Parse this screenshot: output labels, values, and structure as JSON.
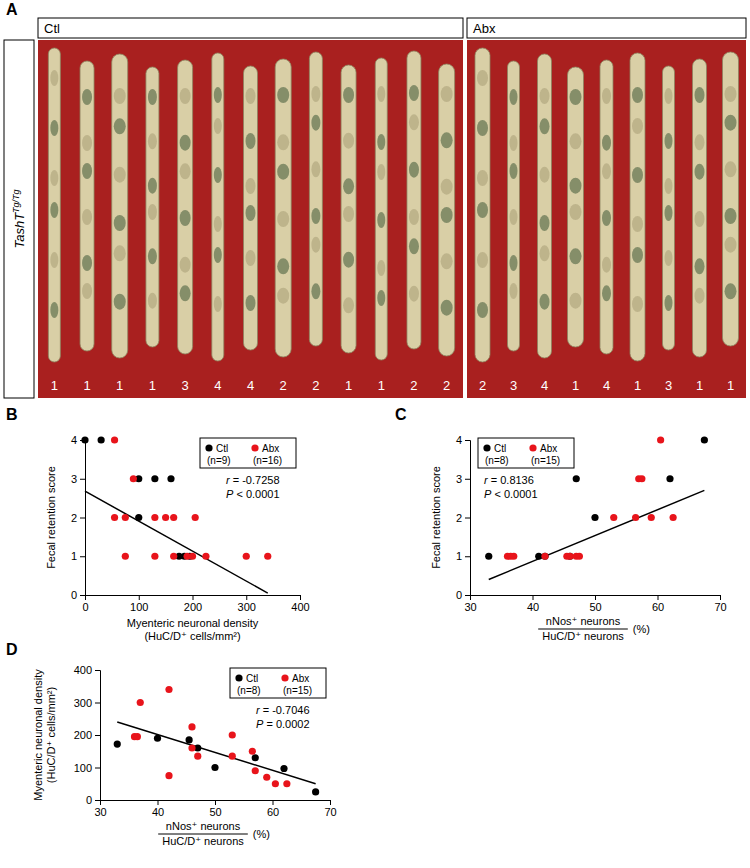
{
  "panel_a": {
    "label": "A",
    "genotype_base": "TashT",
    "genotype_sup": "Tg/Tg",
    "groups": [
      {
        "name": "Ctl",
        "scores": [
          1,
          1,
          1,
          1,
          3,
          4,
          4,
          2,
          2,
          1,
          1,
          2,
          2
        ]
      },
      {
        "name": "Abx",
        "scores": [
          2,
          3,
          4,
          1,
          4,
          1,
          3,
          1,
          1
        ]
      }
    ]
  },
  "chart_data": [
    {
      "label": "B",
      "type": "scatter",
      "xlabel": [
        "Myenteric neuronal density",
        "(HuC/D⁺ cells/mm²)"
      ],
      "ylabel": [
        "Fecal retention score"
      ],
      "xlim": [
        0,
        400
      ],
      "xticks": [
        0,
        100,
        200,
        300,
        400
      ],
      "ylim": [
        0,
        4
      ],
      "yticks": [
        0,
        1,
        2,
        3,
        4
      ],
      "legend": "upper right",
      "marker": "circle",
      "series": [
        {
          "name": "Ctl",
          "n": "(n=9)",
          "color": "#000000",
          "x": [
            0,
            30,
            100,
            130,
            160,
            100,
            175,
            185,
            195
          ],
          "values": [
            4,
            4,
            3,
            3,
            3,
            2,
            1,
            1,
            1
          ]
        },
        {
          "name": "Abx",
          "n": "(n=16)",
          "color": "#e8141b",
          "x": [
            55,
            90,
            55,
            75,
            130,
            150,
            165,
            205,
            75,
            130,
            165,
            190,
            200,
            225,
            300,
            340
          ],
          "values": [
            4,
            3,
            2,
            2,
            2,
            2,
            2,
            2,
            1,
            1,
            1,
            1,
            1,
            1,
            1,
            1
          ]
        }
      ],
      "annotations": [
        "r = -0.7258",
        "P < 0.0001"
      ],
      "trendline": {
        "x": [
          0,
          340
        ],
        "values": [
          2.68,
          0.05
        ]
      }
    },
    {
      "label": "C",
      "type": "scatter",
      "xlabel": [
        "nNos⁺ neurons",
        "HuC/D⁺ neurons",
        "(%)"
      ],
      "ylabel": [
        "Fecal retention score"
      ],
      "xlim": [
        30,
        70
      ],
      "xticks": [
        30,
        40,
        50,
        60,
        70
      ],
      "ylim": [
        0,
        4
      ],
      "yticks": [
        0,
        1,
        2,
        3,
        4
      ],
      "legend": "upper left",
      "marker": "circle",
      "series": [
        {
          "name": "Ctl",
          "n": "(n=8)",
          "color": "#000000",
          "x": [
            33,
            41,
            42,
            46,
            47,
            50,
            62,
            67.5
          ],
          "values": [
            1,
            1,
            1,
            1,
            3,
            2,
            3,
            4
          ]
        },
        {
          "name": "Abx",
          "n": "(n=15)",
          "color": "#e8141b",
          "x": [
            36,
            36.5,
            37,
            42,
            45.5,
            46,
            47,
            47.5,
            53,
            56.5,
            57,
            57.5,
            59,
            60.5,
            62.5
          ],
          "values": [
            1,
            1,
            1,
            1,
            1,
            1,
            1,
            1,
            2,
            2,
            3,
            3,
            2,
            4,
            2
          ]
        }
      ],
      "annotations": [
        "r = 0.8136",
        "P < 0.0001"
      ],
      "trendline": {
        "x": [
          33,
          67.5
        ],
        "values": [
          0.4,
          2.7
        ]
      }
    },
    {
      "label": "D",
      "type": "scatter",
      "xlabel": [
        "nNos⁺ neurons",
        "HuC/D⁺ neurons",
        "(%)"
      ],
      "ylabel": [
        "Myenteric neuronal density",
        "(HuC/D⁺ cells/mm²)"
      ],
      "xlim": [
        30,
        70
      ],
      "xticks": [
        30,
        40,
        50,
        60,
        70
      ],
      "ylim": [
        0,
        400
      ],
      "yticks": [
        0,
        100,
        200,
        300,
        400
      ],
      "legend": "upper right",
      "marker": "circle",
      "series": [
        {
          "name": "Ctl",
          "n": "(n=8)",
          "color": "#000000",
          "x": [
            33,
            40,
            45.5,
            47,
            50,
            57,
            62,
            67.5
          ],
          "values": [
            172,
            190,
            185,
            160,
            100,
            130,
            97,
            25
          ]
        },
        {
          "name": "Abx",
          "n": "(n=15)",
          "color": "#e8141b",
          "x": [
            36,
            36.5,
            37,
            42,
            42,
            46,
            46,
            47,
            53,
            53,
            56.5,
            57,
            59,
            60.5,
            62.5
          ],
          "values": [
            195,
            195,
            300,
            340,
            75,
            225,
            160,
            135,
            135,
            200,
            150,
            90,
            70,
            50,
            50
          ]
        }
      ],
      "annotations": [
        "r = -0.7046",
        "P = 0.0002"
      ],
      "trendline": {
        "x": [
          33,
          67.5
        ],
        "values": [
          240,
          50
        ]
      }
    }
  ]
}
